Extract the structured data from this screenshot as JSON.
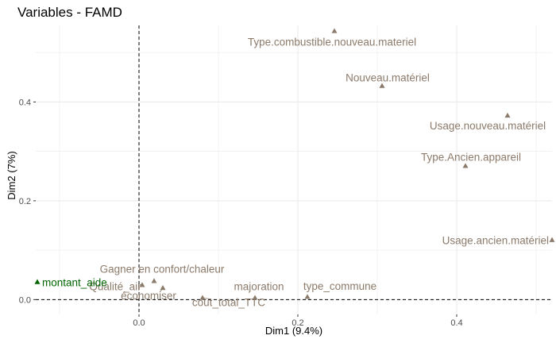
{
  "chart_data": {
    "type": "scatter",
    "title": "Variables - FAMD",
    "xlabel": "Dim1 (9.4%)",
    "ylabel": "Dim2 (7%)",
    "xlim": [
      -0.13,
      0.52
    ],
    "ylim": [
      -0.03,
      0.555
    ],
    "x_ticks": [
      0.0,
      0.2,
      0.4
    ],
    "y_ticks": [
      0.0,
      0.2,
      0.4
    ],
    "x_tick_labels": [
      "0.0",
      "0.2",
      "0.4"
    ],
    "y_tick_labels": [
      "0.0",
      "0.2",
      "0.4"
    ],
    "grid": true,
    "reference_lines": {
      "x": 0,
      "y": 0,
      "style": "dashed"
    },
    "colors": {
      "qualitative": "#8c7b6b",
      "quantitative": "#006400",
      "grid": "#ebebeb",
      "axis_text": "#4d4d4d"
    },
    "points": [
      {
        "label": "Type.combustible.nouveau.materiel",
        "x": 0.246,
        "y": 0.543,
        "kind": "qualitative"
      },
      {
        "label": "Nouveau.matériel",
        "x": 0.306,
        "y": 0.432,
        "kind": "qualitative"
      },
      {
        "label": "Usage.nouveau.matériel",
        "x": 0.464,
        "y": 0.372,
        "kind": "qualitative"
      },
      {
        "label": "Type.Ancien.appareil",
        "x": 0.411,
        "y": 0.27,
        "kind": "qualitative"
      },
      {
        "label": "Usage.ancien.matériel",
        "x": 0.52,
        "y": 0.12,
        "kind": "qualitative"
      },
      {
        "label": "Gagner en confort/chaleur",
        "x": 0.019,
        "y": 0.037,
        "kind": "qualitative"
      },
      {
        "label": "Qualité_air",
        "x": 0.004,
        "y": 0.029,
        "kind": "qualitative"
      },
      {
        "label": "économiser",
        "x": 0.03,
        "y": 0.023,
        "kind": "qualitative"
      },
      {
        "label": "cout_total_TTC",
        "x": 0.08,
        "y": 0.003,
        "kind": "qualitative"
      },
      {
        "label": "majoration",
        "x": 0.146,
        "y": 0.003,
        "kind": "qualitative"
      },
      {
        "label": "type_commune",
        "x": 0.212,
        "y": 0.005,
        "kind": "qualitative"
      },
      {
        "label": "montant_aide",
        "x": -0.128,
        "y": 0.035,
        "kind": "quantitative"
      }
    ]
  }
}
